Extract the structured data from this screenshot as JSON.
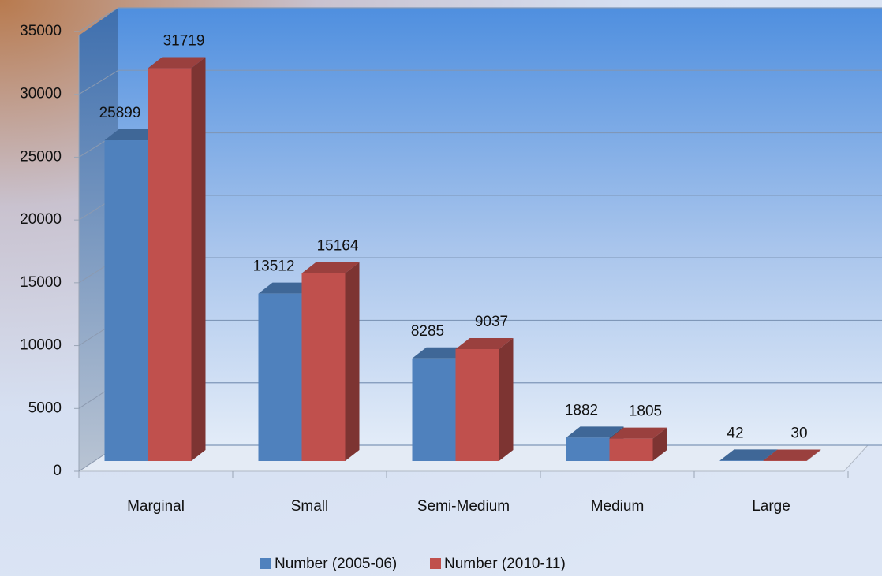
{
  "chart_data": {
    "type": "bar3d",
    "categories": [
      "Marginal",
      "Small",
      "Semi-Medium",
      "Medium",
      "Large"
    ],
    "series": [
      {
        "name": "Number (2005-06)",
        "color": "#4f81bd",
        "values": [
          25899,
          13512,
          8285,
          1882,
          42
        ]
      },
      {
        "name": "Number (2010-11)",
        "color": "#c0504d",
        "values": [
          31719,
          15164,
          9037,
          1805,
          30
        ]
      }
    ],
    "ylim": [
      0,
      35000
    ],
    "yticks": [
      0,
      5000,
      10000,
      15000,
      20000,
      25000,
      30000,
      35000
    ],
    "grid": true,
    "legend": "bottom"
  }
}
